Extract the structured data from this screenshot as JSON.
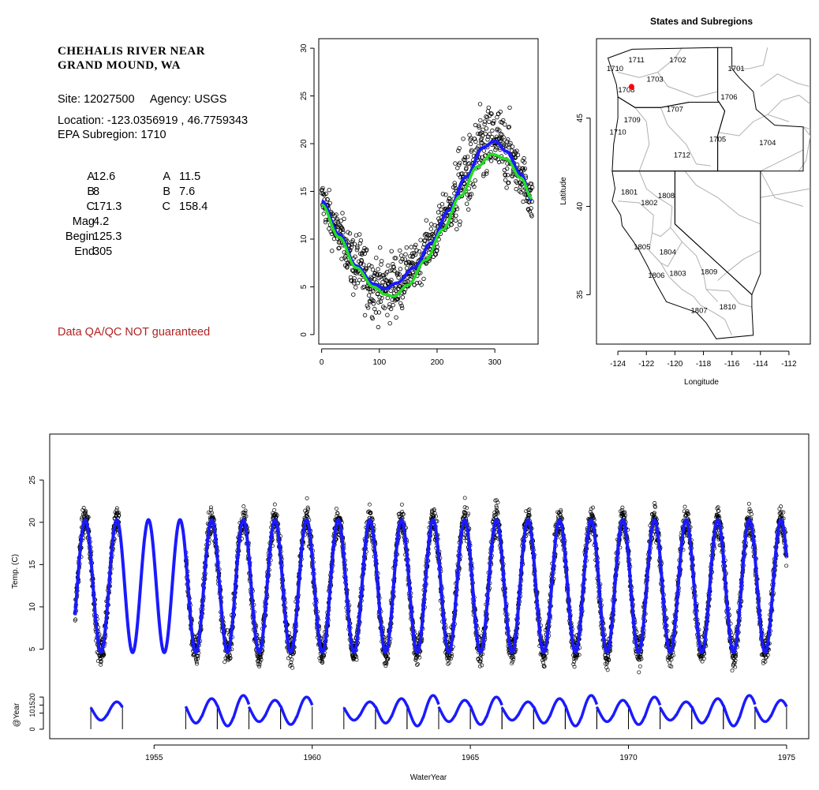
{
  "site": {
    "name_line1": "CHEHALIS RIVER NEAR",
    "name_line2": "GRAND MOUND, WA",
    "site_line": "Site: 12027500     Agency: USGS",
    "location_line": "Location: -123.0356919 , 46.7759343",
    "subregion_line": "EPA Subregion: 1710",
    "qa_note": "Data QA/QC NOT guaranteed"
  },
  "params": {
    "rows": [
      {
        "label": "A",
        "v1": "12.6",
        "label2": "A",
        "v2": "11.5"
      },
      {
        "label": "B",
        "v1": "8",
        "label2": "B",
        "v2": "7.6"
      },
      {
        "label": "C",
        "v1": "171.3",
        "label2": "C",
        "v2": "158.4"
      },
      {
        "label": "Mag",
        "v1": "4.2",
        "label2": "",
        "v2": ""
      },
      {
        "label": "Begin",
        "v1": "125.3",
        "label2": "",
        "v2": ""
      },
      {
        "label": "End",
        "v1": "305",
        "label2": "",
        "v2": ""
      }
    ]
  },
  "colors": {
    "fit_blue": "#1a1aff",
    "fit_green": "#22dd22",
    "points": "#000000",
    "site_marker": "#ff0000",
    "boundary": "#000000",
    "subregion_lines": "#b0b0b0",
    "qa_text": "#b22222"
  },
  "chart_data": [
    {
      "type": "scatter",
      "description": "Day-of-year scatter with two fitted seasonal curves",
      "x_ticks": [
        "0",
        "100",
        "200",
        "300"
      ],
      "y_ticks": [
        "0",
        "5",
        "10",
        "15",
        "20",
        "25",
        "30"
      ],
      "xlim": [
        -5,
        375
      ],
      "ylim": [
        -1,
        31
      ],
      "series": [
        {
          "values": [
            [
              0,
              14.0
            ],
            [
              30,
              10.5
            ],
            [
              60,
              7.2
            ],
            [
              90,
              5.3
            ],
            [
              110,
              4.8
            ],
            [
              130,
              5.4
            ],
            [
              160,
              7.0
            ],
            [
              190,
              9.6
            ],
            [
              220,
              13.0
            ],
            [
              250,
              16.5
            ],
            [
              280,
              19.6
            ],
            [
              300,
              20.3
            ],
            [
              320,
              19.2
            ],
            [
              345,
              16.8
            ],
            [
              365,
              14.0
            ]
          ]
        },
        {
          "values": [
            [
              0,
              13.6
            ],
            [
              30,
              10.2
            ],
            [
              60,
              7.0
            ],
            [
              90,
              5.0
            ],
            [
              110,
              4.2
            ],
            [
              125,
              4.0
            ],
            [
              150,
              5.2
            ],
            [
              180,
              7.8
            ],
            [
              210,
              11.0
            ],
            [
              240,
              14.5
            ],
            [
              270,
              17.6
            ],
            [
              295,
              18.9
            ],
            [
              320,
              18.4
            ],
            [
              345,
              16.4
            ],
            [
              365,
              14.2
            ]
          ]
        }
      ]
    },
    {
      "type": "map",
      "title": "States and Subregions",
      "xlabel": "Longitude",
      "ylabel": "Latitude",
      "x_ticks": [
        "-124",
        "-122",
        "-120",
        "-118",
        "-116",
        "-114",
        "-112"
      ],
      "y_ticks": [
        "35",
        "40",
        "45"
      ],
      "xlim": [
        -125.5,
        -110.5
      ],
      "ylim": [
        32.2,
        49.5
      ],
      "subregion_labels": [
        {
          "label": "1711",
          "lon": -122.7,
          "lat": 48.3
        },
        {
          "label": "1702",
          "lon": -119.8,
          "lat": 48.3
        },
        {
          "label": "1701",
          "lon": -115.7,
          "lat": 47.8
        },
        {
          "label": "1710",
          "lon": -124.2,
          "lat": 47.8
        },
        {
          "label": "1703",
          "lon": -121.4,
          "lat": 47.2
        },
        {
          "label": "1708",
          "lon": -123.4,
          "lat": 46.6
        },
        {
          "label": "1706",
          "lon": -116.2,
          "lat": 46.2
        },
        {
          "label": "1707",
          "lon": -120.0,
          "lat": 45.5
        },
        {
          "label": "1709",
          "lon": -123.0,
          "lat": 44.9
        },
        {
          "label": "1710",
          "lon": -124.0,
          "lat": 44.2
        },
        {
          "label": "1705",
          "lon": -117.0,
          "lat": 43.8
        },
        {
          "label": "1704",
          "lon": -113.5,
          "lat": 43.6
        },
        {
          "label": "1712",
          "lon": -119.5,
          "lat": 42.9
        },
        {
          "label": "1801",
          "lon": -123.2,
          "lat": 40.8
        },
        {
          "label": "1808",
          "lon": -120.6,
          "lat": 40.6
        },
        {
          "label": "1802",
          "lon": -121.8,
          "lat": 40.2
        },
        {
          "label": "1805",
          "lon": -122.3,
          "lat": 37.7
        },
        {
          "label": "1804",
          "lon": -120.5,
          "lat": 37.4
        },
        {
          "label": "1803",
          "lon": -119.8,
          "lat": 36.2
        },
        {
          "label": "1809",
          "lon": -117.6,
          "lat": 36.3
        },
        {
          "label": "1806",
          "lon": -121.3,
          "lat": 36.1
        },
        {
          "label": "1807",
          "lon": -118.3,
          "lat": 34.1
        },
        {
          "label": "1810",
          "lon": -116.3,
          "lat": 34.3
        }
      ],
      "site_marker": {
        "lon": -123.04,
        "lat": 46.78
      }
    },
    {
      "type": "line",
      "description": "Water temperature time series with fitted seasonal curve",
      "ylabel": "Temp. (C)",
      "xlabel": "WaterYear",
      "x_ticks": [
        "1955",
        "1960",
        "1965",
        "1970",
        "1975"
      ],
      "y_ticks": [
        "5",
        "10",
        "15",
        "20",
        "25"
      ],
      "xlim": [
        1951.7,
        1975.7
      ],
      "ylim": [
        1.5,
        29.5
      ],
      "observation_periods": [
        [
          1952.5,
          1953.9
        ],
        [
          1956.0,
          1975.0
        ]
      ],
      "series": [
        {
          "name": "",
          "x_range": [
            1952.5,
            1975.0
          ],
          "peak": 20.3,
          "trough": 4.6,
          "peak_day": 300
        }
      ]
    },
    {
      "type": "line",
      "description": "Per-year fitted curves",
      "ylabel": "@Year",
      "y_ticks": [
        "0",
        "10",
        "15",
        "20"
      ],
      "ylim": [
        -1,
        25
      ],
      "year_segments": [
        [
          1953.0,
          1954.0
        ],
        [
          1956.0,
          1957.0
        ],
        [
          1957.0,
          1958.0
        ],
        [
          1958.0,
          1959.0
        ],
        [
          1959.0,
          1960.0
        ],
        [
          1961.0,
          1962.0
        ],
        [
          1962.0,
          1963.0
        ],
        [
          1963.0,
          1964.0
        ],
        [
          1964.0,
          1965.0
        ],
        [
          1965.0,
          1966.0
        ],
        [
          1966.0,
          1967.0
        ],
        [
          1967.0,
          1968.0
        ],
        [
          1968.0,
          1969.0
        ],
        [
          1969.0,
          1970.0
        ],
        [
          1970.0,
          1971.0
        ],
        [
          1971.0,
          1972.0
        ],
        [
          1972.0,
          1973.0
        ],
        [
          1973.0,
          1974.0
        ],
        [
          1974.0,
          1975.0
        ]
      ]
    }
  ]
}
